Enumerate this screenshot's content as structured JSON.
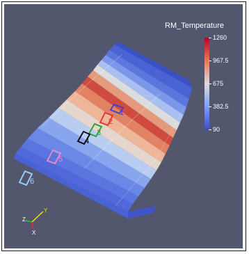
{
  "colorbar": {
    "title": "RM_Temperature",
    "ticks": [
      {
        "label": "1260",
        "value": 1260
      },
      {
        "label": "967.5",
        "value": 967.5
      },
      {
        "label": "675",
        "value": 675
      },
      {
        "label": "382.5",
        "value": 382.5
      },
      {
        "label": "90",
        "value": 90
      }
    ],
    "colors": {
      "low": "#3b4cc0",
      "mid": "#dddcdc",
      "high": "#b40426"
    }
  },
  "markers": [
    {
      "label": "1",
      "color": "#4040d8"
    },
    {
      "label": "2",
      "color": "#e23030"
    },
    {
      "label": "3",
      "color": "#28a028"
    },
    {
      "label": "4",
      "color": "#000000"
    },
    {
      "label": "5",
      "color": "#f08cc8"
    },
    {
      "label": "6",
      "color": "#9fd4ff"
    }
  ],
  "axes": {
    "y": "Y",
    "z": "Z",
    "x": "X"
  }
}
